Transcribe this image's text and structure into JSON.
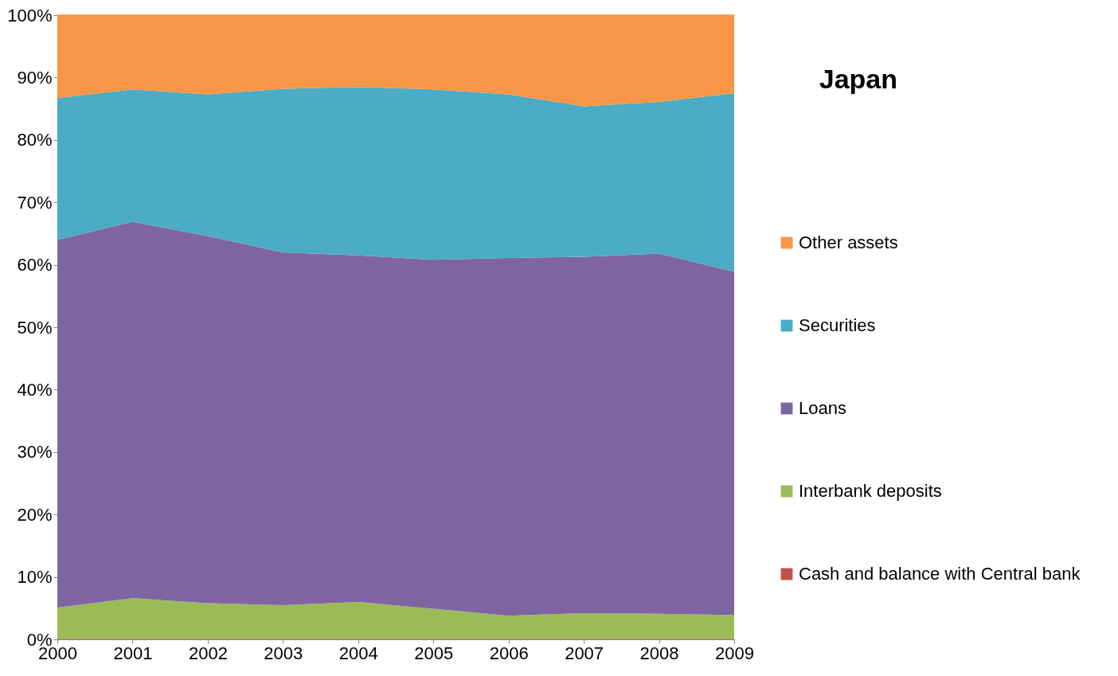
{
  "chart_data": {
    "type": "area",
    "title": "Japan",
    "stacked": true,
    "legend": "right",
    "grid": false,
    "x": [
      2000,
      2001,
      2002,
      2003,
      2004,
      2005,
      2006,
      2007,
      2008,
      2009
    ],
    "xlim": [
      2000,
      2009
    ],
    "xticks": [
      2000,
      2001,
      2002,
      2003,
      2004,
      2005,
      2006,
      2007,
      2008,
      2009
    ],
    "ylim": [
      0,
      100
    ],
    "yticks": [
      {
        "value": 0,
        "label": "0%"
      },
      {
        "value": 10,
        "label": "10%"
      },
      {
        "value": 20,
        "label": "20%"
      },
      {
        "value": 30,
        "label": "30%"
      },
      {
        "value": 40,
        "label": "40%"
      },
      {
        "value": 50,
        "label": "50%"
      },
      {
        "value": 60,
        "label": "60%"
      },
      {
        "value": 70,
        "label": "70%"
      },
      {
        "value": 80,
        "label": "80%"
      },
      {
        "value": 90,
        "label": "90%"
      },
      {
        "value": 100,
        "label": "100%"
      }
    ],
    "series": [
      {
        "name": "Cash and balance with Central bank",
        "color": "#c0504d",
        "values": [
          0.1,
          0.1,
          0.1,
          0.1,
          0.1,
          0.1,
          0.1,
          0.1,
          0.1,
          0.1
        ]
      },
      {
        "name": "Interbank deposits",
        "color": "#9bbb59",
        "values": [
          5.0,
          6.5,
          5.7,
          5.4,
          5.9,
          4.8,
          3.7,
          4.1,
          4.0,
          3.8
        ]
      },
      {
        "name": "Loans",
        "color": "#8064a2",
        "values": [
          58.9,
          60.3,
          58.8,
          56.5,
          55.5,
          55.9,
          57.3,
          57.1,
          57.7,
          55.0
        ]
      },
      {
        "name": "Securities",
        "color": "#4bacc6",
        "values": [
          22.7,
          21.2,
          22.7,
          26.2,
          27.0,
          27.3,
          26.2,
          24.1,
          24.3,
          28.6
        ]
      },
      {
        "name": "Other assets",
        "color": "#f79646",
        "values": [
          13.4,
          12.0,
          12.8,
          11.9,
          11.6,
          12.0,
          12.8,
          14.7,
          14.0,
          12.6
        ]
      }
    ]
  }
}
